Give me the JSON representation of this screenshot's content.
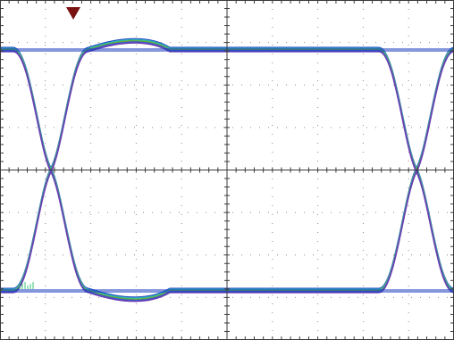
{
  "screen": {
    "background_color": "#ffffff",
    "graticule_color": "#3a3a3a",
    "dot_color": "#8a8a8a",
    "divisions": {
      "horizontal": 10,
      "vertical": 8
    }
  },
  "trigger_marker": {
    "icon": "trigger-position-triangle-icon",
    "color": "#7a1212"
  },
  "eye_traces": {
    "colors": [
      "#1f3fbf",
      "#2aa7c9",
      "#3cc47a",
      "#7b9a2e",
      "#2b5fe0",
      "#6a3fb3"
    ],
    "crossing_count": 2
  }
}
